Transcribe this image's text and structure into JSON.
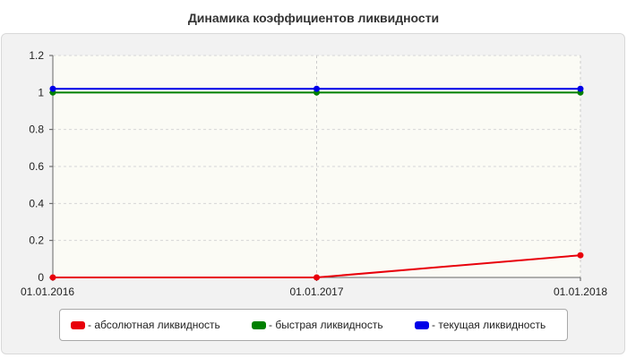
{
  "chart_data": {
    "type": "line",
    "title": "Динамика коэффициентов ликвидности",
    "x": [
      "01.01.2016",
      "01.01.2017",
      "01.01.2018"
    ],
    "ylim": [
      0,
      1.2
    ],
    "yticks": [
      "0",
      "0.2",
      "0.4",
      "0.6",
      "0.8",
      "1",
      "1.2"
    ],
    "grid": true,
    "legend_position": "bottom",
    "series": [
      {
        "name": "- абсолютная ликвидность",
        "color": "#e8000b",
        "values": [
          0,
          0,
          0.12
        ]
      },
      {
        "name": "- быстрая ликвидность",
        "color": "#008000",
        "values": [
          1,
          1,
          1
        ]
      },
      {
        "name": "- текущая ликвидность",
        "color": "#0000e8",
        "values": [
          1.02,
          1.02,
          1.02
        ]
      }
    ]
  }
}
